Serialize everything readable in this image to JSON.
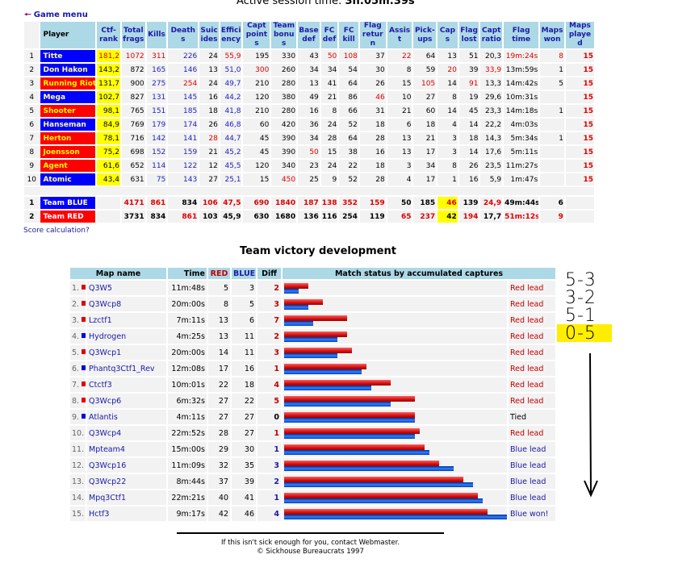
{
  "session": {
    "label": "Active session time:",
    "value": "3h:05m:39s"
  },
  "nav": {
    "game_menu": "Game menu"
  },
  "stats": {
    "headers": [
      "Player",
      "Ctf-rank",
      "Total frags",
      "Kills",
      "Deaths",
      "Suic ides",
      "Effici ency",
      "Capt points",
      "Team bonus",
      "Base def",
      "FC def",
      "FC kill",
      "Flag return",
      "Assist",
      "Pick-ups",
      "Caps",
      "Flag lost",
      "Capt ratio",
      "Flag time",
      "Maps won",
      "Maps played"
    ],
    "players": [
      {
        "idx": "1",
        "name": "Titte",
        "team": "blue",
        "cells": [
          "181,2",
          "1072",
          "311",
          "226",
          "24",
          "55,9",
          "195",
          "330",
          "43",
          "50",
          "108",
          "37",
          "22",
          "64",
          "13",
          "51",
          "20,3",
          "19m:24s",
          "8",
          "15"
        ],
        "red": [
          0,
          1,
          2,
          5,
          9,
          10,
          12,
          17,
          18
        ]
      },
      {
        "idx": "2",
        "name": "Don Hakon",
        "team": "blue",
        "cells": [
          "143,2",
          "872",
          "165",
          "146",
          "13",
          "51,0",
          "300",
          "260",
          "34",
          "34",
          "54",
          "30",
          "8",
          "59",
          "20",
          "39",
          "33,9",
          "13m:59s",
          "1",
          "15"
        ],
        "red": [
          6,
          14,
          16
        ]
      },
      {
        "idx": "3",
        "name": "Running Riot",
        "team": "red",
        "cells": [
          "131,7",
          "900",
          "275",
          "254",
          "24",
          "49,7",
          "210",
          "280",
          "13",
          "41",
          "64",
          "26",
          "15",
          "105",
          "14",
          "91",
          "13,3",
          "14m:42s",
          "5",
          "15"
        ],
        "red": [
          3,
          13,
          15
        ]
      },
      {
        "idx": "4",
        "name": "Mega",
        "team": "blue",
        "cells": [
          "102,7",
          "827",
          "131",
          "145",
          "16",
          "44,2",
          "120",
          "380",
          "49",
          "21",
          "86",
          "46",
          "10",
          "27",
          "8",
          "19",
          "29,6",
          "10m:31s",
          "",
          "15"
        ],
        "red": [
          11
        ]
      },
      {
        "idx": "5",
        "name": "Shooter",
        "team": "red",
        "cells": [
          "98,1",
          "765",
          "151",
          "185",
          "18",
          "41,8",
          "210",
          "280",
          "16",
          "8",
          "66",
          "31",
          "21",
          "60",
          "14",
          "45",
          "23,3",
          "14m:18s",
          "1",
          "15"
        ],
        "red": []
      },
      {
        "idx": "6",
        "name": "Hanseman",
        "team": "blue",
        "cells": [
          "84,9",
          "769",
          "179",
          "174",
          "26",
          "46,8",
          "60",
          "420",
          "36",
          "24",
          "52",
          "18",
          "6",
          "18",
          "4",
          "14",
          "22,2",
          "4m:03s",
          "",
          "15"
        ],
        "red": []
      },
      {
        "idx": "7",
        "name": "Herton",
        "team": "red",
        "cells": [
          "78,1",
          "716",
          "142",
          "141",
          "28",
          "44,7",
          "45",
          "390",
          "34",
          "28",
          "64",
          "28",
          "13",
          "21",
          "3",
          "18",
          "14,3",
          "5m:34s",
          "1",
          "15"
        ],
        "red": [
          4
        ]
      },
      {
        "idx": "8",
        "name": "Joensson",
        "team": "red",
        "cells": [
          "75,2",
          "698",
          "152",
          "159",
          "21",
          "45,2",
          "45",
          "390",
          "50",
          "15",
          "38",
          "16",
          "13",
          "17",
          "3",
          "14",
          "17,6",
          "5m:11s",
          "",
          "15"
        ],
        "red": [
          8
        ]
      },
      {
        "idx": "9",
        "name": "Agent",
        "team": "red",
        "cells": [
          "61,6",
          "652",
          "114",
          "122",
          "12",
          "45,5",
          "120",
          "340",
          "23",
          "24",
          "22",
          "18",
          "3",
          "34",
          "8",
          "26",
          "23,5",
          "11m:27s",
          "",
          "15"
        ],
        "red": []
      },
      {
        "idx": "10",
        "name": "Atomic",
        "team": "blue",
        "cells": [
          "43,4",
          "631",
          "75",
          "143",
          "27",
          "25,1",
          "15",
          "450",
          "25",
          "9",
          "52",
          "28",
          "4",
          "17",
          "1",
          "16",
          "5,9",
          "1m:47s",
          "",
          "15"
        ],
        "red": [
          7
        ]
      }
    ],
    "teams": [
      {
        "idx": "1",
        "name": "Team BLUE",
        "team": "blue",
        "cells": [
          "",
          "4171",
          "861",
          "834",
          "106",
          "47,5",
          "690",
          "1840",
          "187",
          "138",
          "352",
          "159",
          "50",
          "185",
          "46",
          "139",
          "24,9",
          "49m:44s",
          "6",
          ""
        ],
        "red": [
          1,
          2,
          4,
          5,
          6,
          7,
          8,
          9,
          10,
          11,
          14,
          16
        ]
      },
      {
        "idx": "2",
        "name": "Team RED",
        "team": "red",
        "cells": [
          "",
          "3731",
          "834",
          "861",
          "103",
          "45,9",
          "630",
          "1680",
          "136",
          "116",
          "254",
          "119",
          "65",
          "237",
          "42",
          "194",
          "17,7",
          "51m:12s",
          "9",
          ""
        ],
        "red": [
          3,
          12,
          13,
          15,
          17,
          18
        ]
      }
    ]
  },
  "score_calc": "Score calculation?",
  "victory": {
    "title": "Team victory development",
    "headers": {
      "map": "Map name",
      "time": "Time",
      "red": "RED",
      "blue": "BLUE",
      "diff": "Diff",
      "status": "Match status by accumulated captures"
    },
    "colors": {
      "red": "#e00000",
      "blue": "#0000e0",
      "text_red": "#c00000",
      "text_blue": "#1a1aa6"
    },
    "maps": [
      {
        "idx": "1.",
        "winner": "red",
        "name": "Q3W5",
        "time": "11m:48s",
        "red": 5,
        "blue": 3,
        "diff": "2",
        "status": "Red lead"
      },
      {
        "idx": "2.",
        "winner": "red",
        "name": "Q3Wcp8",
        "time": "20m:00s",
        "red": 8,
        "blue": 5,
        "diff": "3",
        "status": "Red lead"
      },
      {
        "idx": "3.",
        "winner": "red",
        "name": "Lzctf1",
        "time": "7m:11s",
        "red": 13,
        "blue": 6,
        "diff": "7",
        "status": "Red lead"
      },
      {
        "idx": "4.",
        "winner": "blue",
        "name": "Hydrogen",
        "time": "4m:25s",
        "red": 13,
        "blue": 11,
        "diff": "2",
        "status": "Red lead"
      },
      {
        "idx": "5.",
        "winner": "red",
        "name": "Q3Wcp1",
        "time": "20m:00s",
        "red": 14,
        "blue": 11,
        "diff": "3",
        "status": "Red lead"
      },
      {
        "idx": "6.",
        "winner": "blue",
        "name": "Phantq3Ctf1_Rev",
        "time": "12m:08s",
        "red": 17,
        "blue": 16,
        "diff": "1",
        "status": "Red lead"
      },
      {
        "idx": "7.",
        "winner": "red",
        "name": "Ctctf3",
        "time": "10m:01s",
        "red": 22,
        "blue": 18,
        "diff": "4",
        "status": "Red lead"
      },
      {
        "idx": "8.",
        "winner": "red",
        "name": "Q3Wcp6",
        "time": "6m:32s",
        "red": 27,
        "blue": 22,
        "diff": "5",
        "status": "Red lead"
      },
      {
        "idx": "9.",
        "winner": "blue",
        "name": "Atlantis",
        "time": "4m:11s",
        "red": 27,
        "blue": 27,
        "diff": "0",
        "status": "Tied"
      },
      {
        "idx": "10.",
        "winner": "red",
        "name": "Q3Wcp4",
        "time": "22m:52s",
        "red": 28,
        "blue": 27,
        "diff": "1",
        "status": "Red lead"
      },
      {
        "idx": "11.",
        "winner": "blue",
        "name": "Mpteam4",
        "time": "15m:00s",
        "red": 29,
        "blue": 30,
        "diff": "1",
        "status": "Blue lead"
      },
      {
        "idx": "12.",
        "winner": "blue",
        "name": "Q3Wcp16",
        "time": "11m:09s",
        "red": 32,
        "blue": 35,
        "diff": "3",
        "status": "Blue lead"
      },
      {
        "idx": "13.",
        "winner": "red",
        "name": "Q3Wcp22",
        "time": "8m:44s",
        "red": 37,
        "blue": 39,
        "diff": "2",
        "status": "Blue lead"
      },
      {
        "idx": "14.",
        "winner": "red",
        "name": "Mpq3Ctf1",
        "time": "22m:21s",
        "red": 40,
        "blue": 41,
        "diff": "1",
        "status": "Blue lead"
      },
      {
        "idx": "15.",
        "winner": "blue",
        "name": "Hctf3",
        "time": "9m:17s",
        "red": 42,
        "blue": 46,
        "diff": "4",
        "status": "Blue won!"
      }
    ]
  },
  "footer": {
    "line1": "If this isn't sick enough for you, contact Webmaster.",
    "line2": "© Sickhouse Bureaucrats 1997"
  },
  "annotations": [
    "5-3",
    "3-2",
    "5-1",
    "0-5"
  ]
}
